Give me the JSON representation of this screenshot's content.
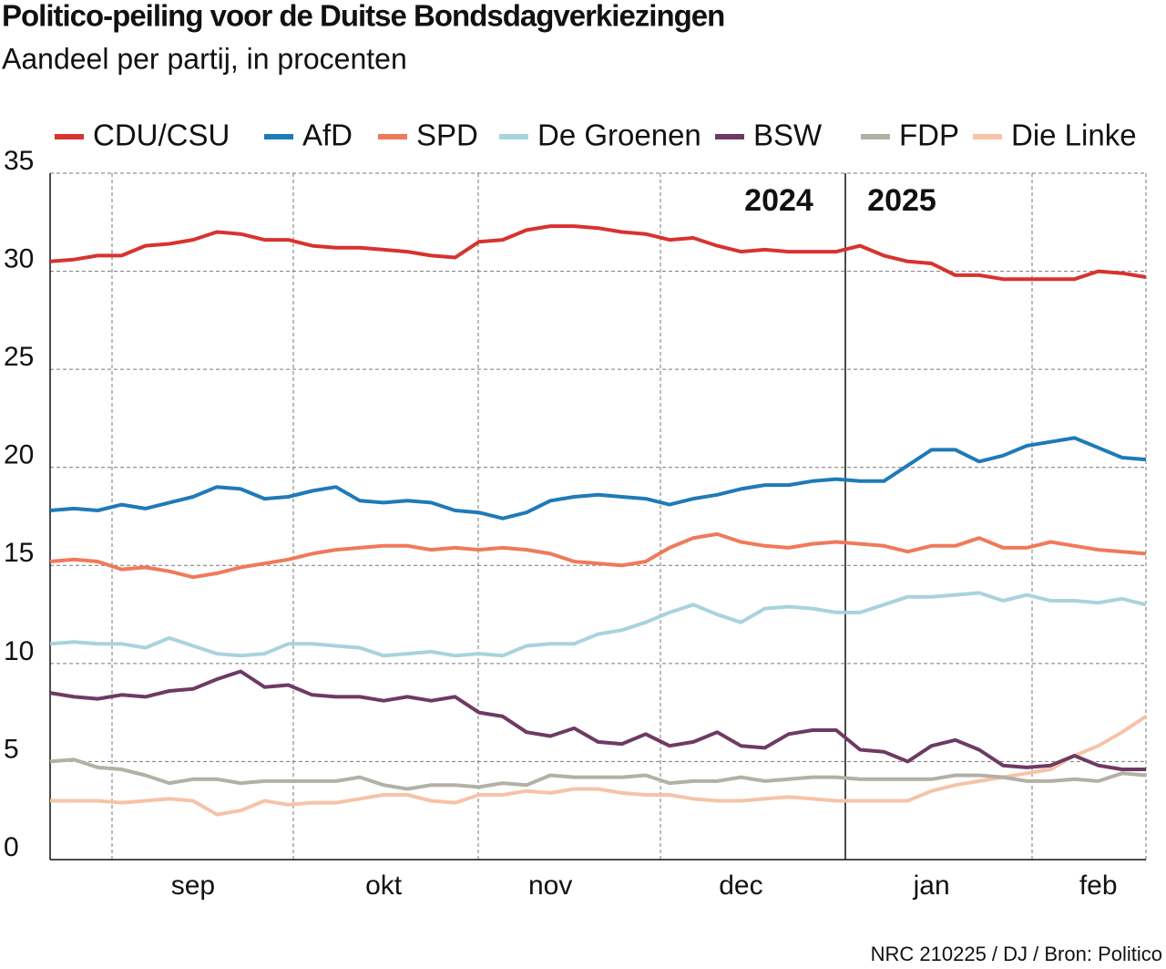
{
  "chart_data": {
    "type": "line",
    "title": "Politico-peiling voor de Duitse Bondsdagverkiezingen",
    "subtitle": "Aandeel per partij, in procenten",
    "source": "NRC 210225 / DJ / Bron: Politico",
    "annotations": [
      "2024",
      "2025"
    ],
    "categories": [
      null,
      null,
      null,
      null,
      null,
      null,
      "sep",
      null,
      null,
      null,
      null,
      null,
      null,
      null,
      "okt",
      null,
      null,
      null,
      null,
      null,
      null,
      "nov",
      null,
      null,
      null,
      null,
      null,
      null,
      null,
      "dec",
      null,
      null,
      null,
      null,
      null,
      null,
      null,
      "jan",
      null,
      null,
      null,
      null,
      null,
      null,
      "feb",
      null,
      null
    ],
    "ylim": [
      0,
      35
    ],
    "yticks": [
      0,
      5,
      10,
      15,
      20,
      25,
      30,
      35
    ],
    "grid": true,
    "legend": "top",
    "series": [
      {
        "name": "CDU/CSU",
        "color": "#d7332f",
        "values": [
          30.5,
          30.6,
          30.8,
          30.8,
          31.3,
          31.4,
          31.6,
          32.0,
          31.9,
          31.6,
          31.6,
          31.3,
          31.2,
          31.2,
          31.1,
          31.0,
          30.8,
          30.7,
          31.5,
          31.6,
          32.1,
          32.3,
          32.3,
          32.2,
          32.0,
          31.9,
          31.6,
          31.7,
          31.3,
          31.0,
          31.1,
          31.0,
          31.0,
          31.0,
          31.3,
          30.8,
          30.5,
          30.4,
          29.8,
          29.8,
          29.6,
          29.6,
          29.6,
          29.6,
          30.0,
          29.9,
          29.7
        ]
      },
      {
        "name": "AfD",
        "color": "#1f7ab8",
        "values": [
          17.8,
          17.9,
          17.8,
          18.1,
          17.9,
          18.2,
          18.5,
          19.0,
          18.9,
          18.4,
          18.5,
          18.8,
          19.0,
          18.3,
          18.2,
          18.3,
          18.2,
          17.8,
          17.7,
          17.4,
          17.7,
          18.3,
          18.5,
          18.6,
          18.5,
          18.4,
          18.1,
          18.4,
          18.6,
          18.9,
          19.1,
          19.1,
          19.3,
          19.4,
          19.3,
          19.3,
          20.1,
          20.9,
          20.9,
          20.3,
          20.6,
          21.1,
          21.3,
          21.5,
          21.0,
          20.5,
          20.4
        ]
      },
      {
        "name": "SPD",
        "color": "#ef7a5a",
        "values": [
          15.2,
          15.3,
          15.2,
          14.8,
          14.9,
          14.7,
          14.4,
          14.6,
          14.9,
          15.1,
          15.3,
          15.6,
          15.8,
          15.9,
          16.0,
          16.0,
          15.8,
          15.9,
          15.8,
          15.9,
          15.8,
          15.6,
          15.2,
          15.1,
          15.0,
          15.2,
          15.9,
          16.4,
          16.6,
          16.2,
          16.0,
          15.9,
          16.1,
          16.2,
          16.1,
          16.0,
          15.7,
          16.0,
          16.0,
          16.4,
          15.9,
          15.9,
          16.2,
          16.0,
          15.8,
          15.7,
          15.6
        ]
      },
      {
        "name": "De Groenen",
        "color": "#a9d3dc",
        "values": [
          11.0,
          11.1,
          11.0,
          11.0,
          10.8,
          11.3,
          10.9,
          10.5,
          10.4,
          10.5,
          11.0,
          11.0,
          10.9,
          10.8,
          10.4,
          10.5,
          10.6,
          10.4,
          10.5,
          10.4,
          10.9,
          11.0,
          11.0,
          11.5,
          11.7,
          12.1,
          12.6,
          13.0,
          12.5,
          12.1,
          12.8,
          12.9,
          12.8,
          12.6,
          12.6,
          13.0,
          13.4,
          13.4,
          13.5,
          13.6,
          13.2,
          13.5,
          13.2,
          13.2,
          13.1,
          13.3,
          13.0
        ]
      },
      {
        "name": "BSW",
        "color": "#6e3a63",
        "values": [
          8.5,
          8.3,
          8.2,
          8.4,
          8.3,
          8.6,
          8.7,
          9.2,
          9.6,
          8.8,
          8.9,
          8.4,
          8.3,
          8.3,
          8.1,
          8.3,
          8.1,
          8.3,
          7.5,
          7.3,
          6.5,
          6.3,
          6.7,
          6.0,
          5.9,
          6.4,
          5.8,
          6.0,
          6.5,
          5.8,
          5.7,
          6.4,
          6.6,
          6.6,
          5.6,
          5.5,
          5.0,
          5.8,
          6.1,
          5.6,
          4.8,
          4.7,
          4.8,
          5.3,
          4.8,
          4.6,
          4.6
        ]
      },
      {
        "name": "FDP",
        "color": "#b3b0a6",
        "values": [
          5.0,
          5.1,
          4.7,
          4.6,
          4.3,
          3.9,
          4.1,
          4.1,
          3.9,
          4.0,
          4.0,
          4.0,
          4.0,
          4.2,
          3.8,
          3.6,
          3.8,
          3.8,
          3.7,
          3.9,
          3.8,
          4.3,
          4.2,
          4.2,
          4.2,
          4.3,
          3.9,
          4.0,
          4.0,
          4.2,
          4.0,
          4.1,
          4.2,
          4.2,
          4.1,
          4.1,
          4.1,
          4.1,
          4.3,
          4.3,
          4.2,
          4.0,
          4.0,
          4.1,
          4.0,
          4.4,
          4.3
        ]
      },
      {
        "name": "Die Linke",
        "color": "#f6c3a8",
        "values": [
          3.0,
          3.0,
          3.0,
          2.9,
          3.0,
          3.1,
          3.0,
          2.3,
          2.5,
          3.0,
          2.8,
          2.9,
          2.9,
          3.1,
          3.3,
          3.3,
          3.0,
          2.9,
          3.3,
          3.3,
          3.5,
          3.4,
          3.6,
          3.6,
          3.4,
          3.3,
          3.3,
          3.1,
          3.0,
          3.0,
          3.1,
          3.2,
          3.1,
          3.0,
          3.0,
          3.0,
          3.0,
          3.5,
          3.8,
          4.0,
          4.2,
          4.4,
          4.6,
          5.3,
          5.8,
          6.5,
          7.3
        ]
      }
    ]
  }
}
